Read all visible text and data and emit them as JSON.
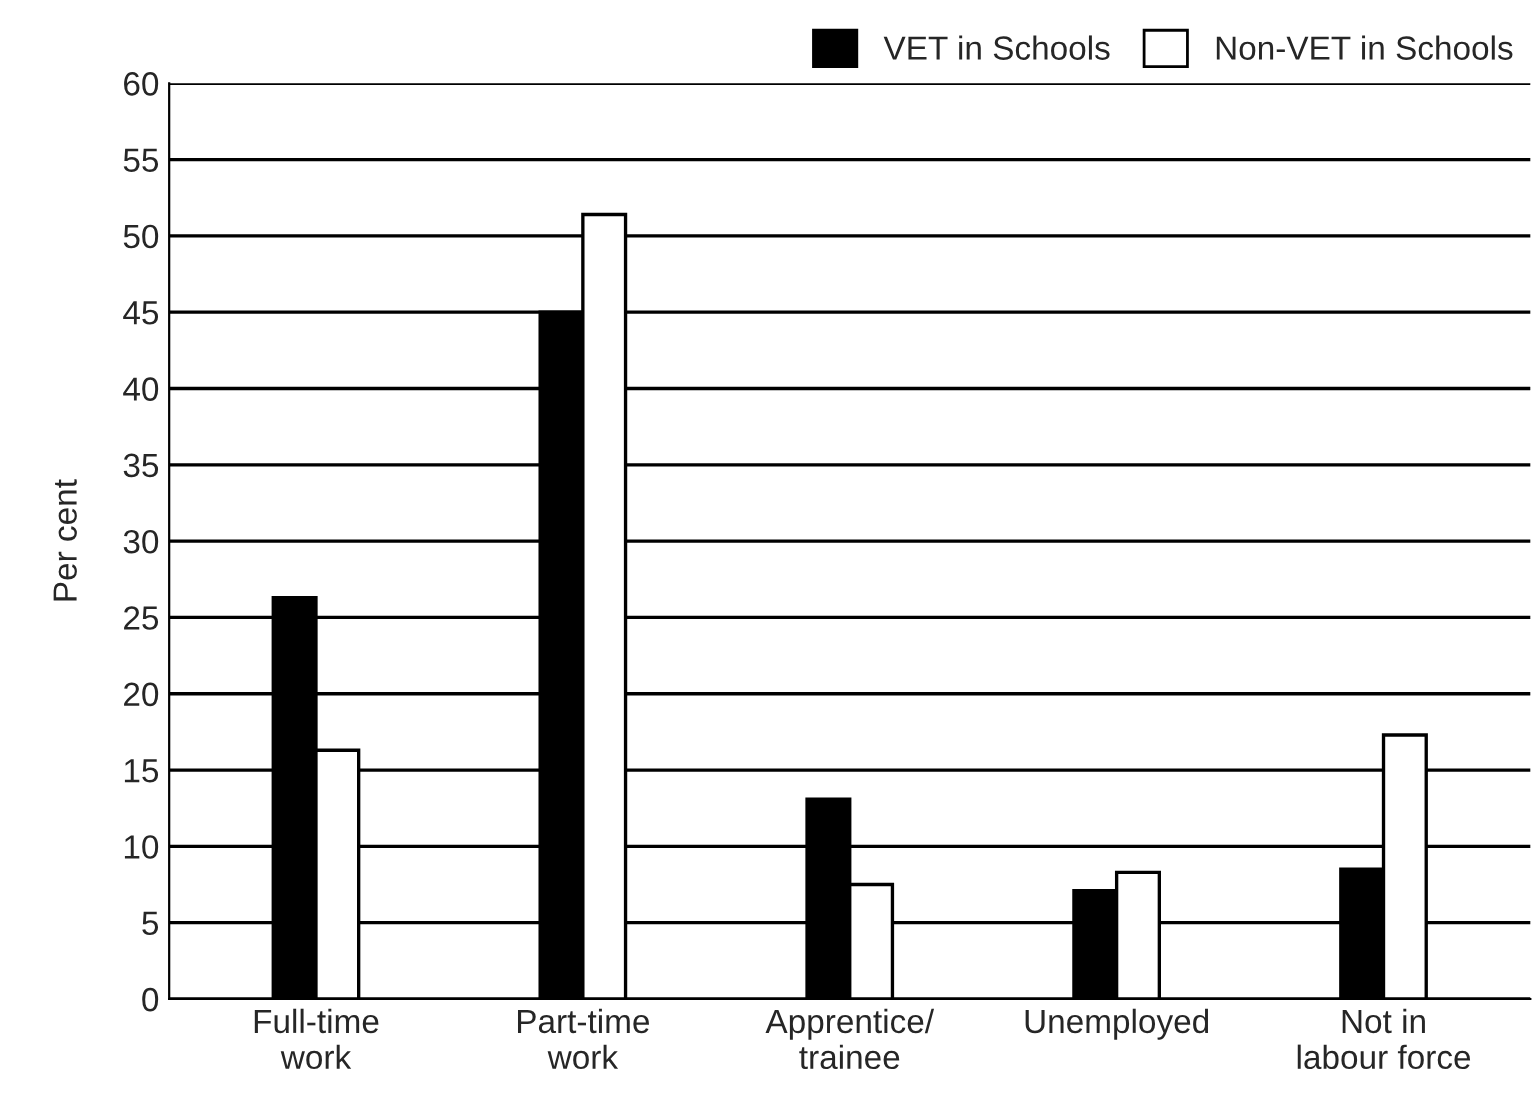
{
  "chart_data": {
    "type": "bar",
    "ylabel": "Per cent",
    "categories": [
      "Full-time\nwork",
      "Part-time\nwork",
      "Apprentice/\ntrainee",
      "Unemployed",
      "Not in\nlabour force"
    ],
    "series": [
      {
        "name": "VET in Schools",
        "color": "#000000",
        "values": [
          26.3,
          45.0,
          13.1,
          7.1,
          8.5
        ]
      },
      {
        "name": "Non-VET in Schools",
        "color": "#ffffff",
        "values": [
          16.3,
          51.4,
          7.5,
          8.3,
          17.3
        ]
      }
    ],
    "ylim": [
      0,
      60
    ],
    "yticks": [
      0,
      5,
      10,
      15,
      20,
      25,
      30,
      35,
      40,
      45,
      50,
      55,
      60
    ],
    "grid": "y",
    "legend": "top right"
  }
}
